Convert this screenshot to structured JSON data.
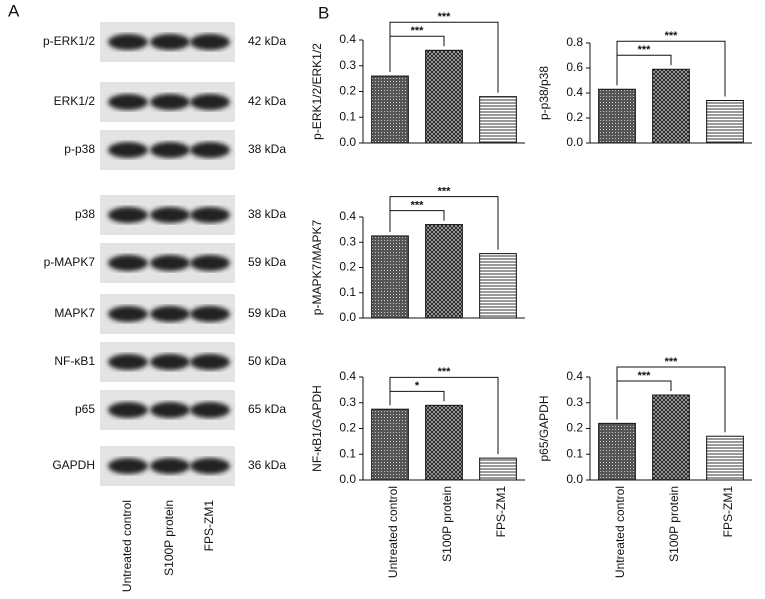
{
  "panel_labels": [
    "A",
    "B"
  ],
  "blot": {
    "rows": [
      {
        "protein": "p-ERK1/2",
        "size": "42 kDa"
      },
      {
        "protein": "ERK1/2",
        "size": "42 kDa"
      },
      {
        "protein": "p-p38",
        "size": "38 kDa"
      },
      {
        "protein": "p38",
        "size": "38 kDa"
      },
      {
        "protein": "p-MAPK7",
        "size": "59 kDa"
      },
      {
        "protein": "MAPK7",
        "size": "59 kDa"
      },
      {
        "protein": "NF-κB1",
        "size": "50 kDa"
      },
      {
        "protein": "p65",
        "size": "65 kDa"
      },
      {
        "protein": "GAPDH",
        "size": "36 kDa"
      }
    ],
    "lanes": [
      "Untreated control",
      "S100P protein",
      "FPS-ZM1"
    ]
  },
  "chart_data": [
    {
      "type": "bar",
      "ylabel": "p-ERK1/2/ERK1/2",
      "values": [
        0.26,
        0.36,
        0.18
      ],
      "ylim": [
        0,
        0.4
      ],
      "yticks": [
        {
          "value": 0,
          "label": "0.0"
        },
        0.1,
        0.2,
        0.3,
        0.4
      ],
      "annotations": [
        "***",
        "***"
      ]
    },
    {
      "type": "bar",
      "ylabel": "p-p38/p38",
      "values": [
        0.43,
        0.59,
        0.34
      ],
      "ylim": [
        0,
        0.8
      ],
      "yticks": [
        {
          "value": 0,
          "label": "0.0"
        },
        0.2,
        0.4,
        0.6,
        0.8
      ],
      "annotations": [
        "***",
        "***"
      ]
    },
    {
      "type": "bar",
      "ylabel": "p-MAPK7/MAPK7",
      "values": [
        0.325,
        0.37,
        0.255
      ],
      "ylim": [
        0,
        0.4
      ],
      "yticks": [
        {
          "value": 0,
          "label": "0.0"
        },
        0.1,
        0.2,
        0.3,
        0.4
      ],
      "annotations": [
        "***",
        "***"
      ]
    },
    {
      "type": "bar",
      "ylabel": "NF-κB1/GAPDH",
      "categories": [
        "Untreated control",
        "S100P protein",
        "FPS-ZM1"
      ],
      "values": [
        0.275,
        0.29,
        0.085
      ],
      "ylim": [
        0,
        0.4
      ],
      "yticks": [
        {
          "value": 0,
          "label": "0.0"
        },
        0.1,
        0.2,
        0.3,
        0.4
      ],
      "annotations": [
        "*",
        "***"
      ]
    },
    {
      "type": "bar",
      "ylabel": "p65/GAPDH",
      "categories": [
        "Untreated control",
        "S100P protein",
        "FPS-ZM1"
      ],
      "values": [
        0.22,
        0.33,
        0.17
      ],
      "ylim": [
        0,
        0.4
      ],
      "yticks": [
        {
          "value": 0,
          "label": "0.0"
        },
        0.1,
        0.2,
        0.3,
        0.4
      ],
      "annotations": [
        "***",
        "***"
      ]
    }
  ]
}
